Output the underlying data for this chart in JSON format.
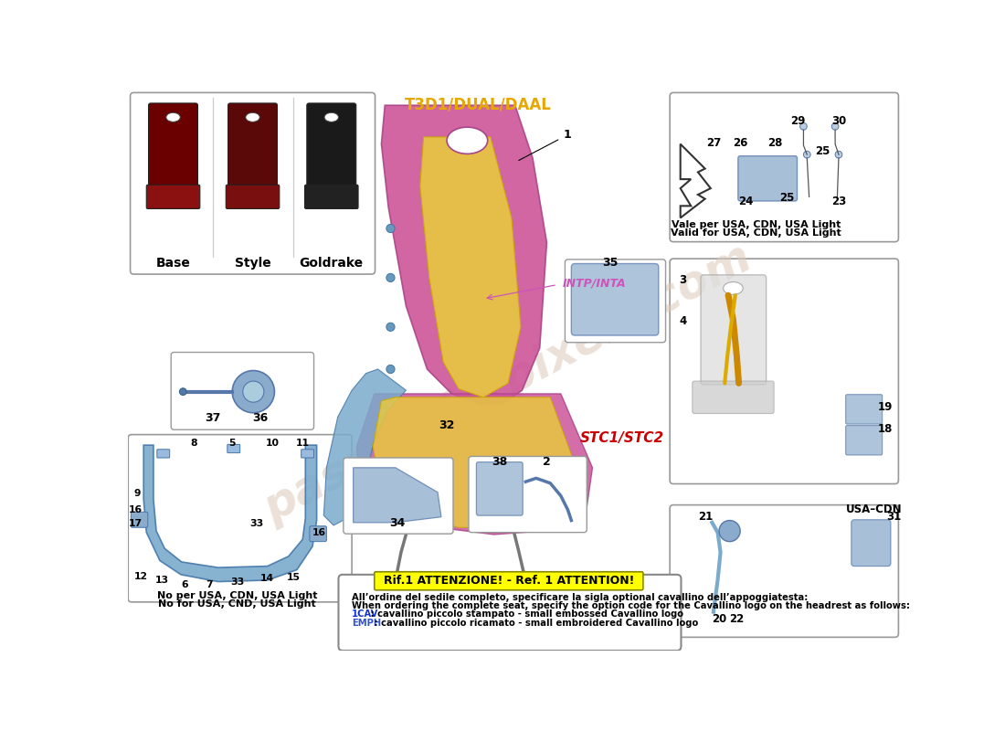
{
  "bg_color": "#ffffff",
  "title_text": "T3D1/DUAL/DAAL",
  "title_color": "#e6a800",
  "intp_label": "INTP/INTA",
  "stc_label": "STC1/STC2",
  "attention_title": "Rif.1 ATTENZIONE! - Ref. 1 ATTENTION!",
  "attention_line1": "All’ordine del sedile completo, specificare la sigla optional cavallino dell’appoggiatesta:",
  "attention_line2": "When ordering the complete seat, specify the option code for the Cavallino logo on the headrest as follows:",
  "attention_line3_prefix": "1CAV",
  "attention_line3_text": " : cavallino piccolo stampato - small embossed Cavallino logo",
  "attention_line4_prefix": "EMPH",
  "attention_line4_text": " : cavallino piccolo ricamato - small embroidered Cavallino logo",
  "usa_cdn_label": "USA–CDN",
  "vale_line1": "Vale per USA, CDN, USA Light",
  "vale_line2": "Valid for USA, CDN, USA Light",
  "no_usa_line1": "No per USA, CDN, USA Light",
  "no_usa_line2": "No for USA, CND, USA Light",
  "seat_types": [
    "Base",
    "Style",
    "Goldrake"
  ],
  "main_seat_color1": "#cc5599",
  "main_seat_color2": "#e8c840",
  "seat_side_color": "#7aabcc",
  "rollbar_color": "#7aabcc",
  "red_text_color": "#cc0000",
  "blue_text_color": "#3355cc",
  "yellow_fill": "#ffff00",
  "box_border": "#999999",
  "watermark_color": "#ddc8b8",
  "watermark_text": "passionforpixels.com"
}
